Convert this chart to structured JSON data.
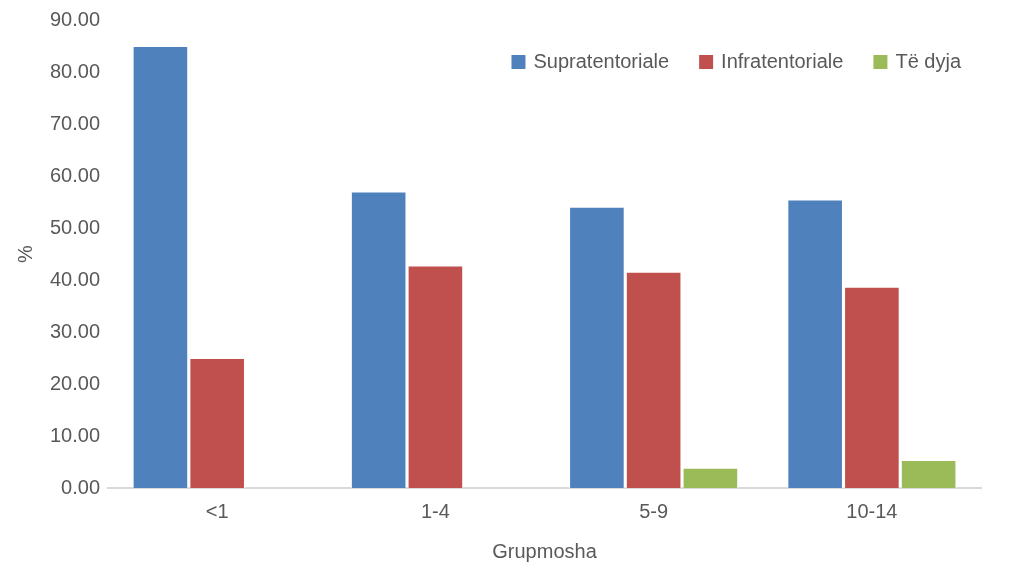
{
  "chart_data": {
    "type": "bar",
    "xlabel": "Grupmosha",
    "ylabel": "%",
    "categories": [
      "<1",
      "1-4",
      "5-9",
      "10-14"
    ],
    "series": [
      {
        "name": "Supratentoriale",
        "color": "#4f81bd",
        "values": [
          85.0,
          57.0,
          54.1,
          55.5
        ]
      },
      {
        "name": "Infratentoriale",
        "color": "#c0504d",
        "values": [
          25.0,
          42.8,
          41.6,
          38.7
        ]
      },
      {
        "name": "Të dyja",
        "color": "#9bbb59",
        "values": [
          null,
          null,
          3.9,
          5.4
        ]
      }
    ],
    "ylim": [
      0,
      90
    ],
    "yticks": [
      {
        "value": 0,
        "label": "0.00"
      },
      {
        "value": 10,
        "label": "10.00"
      },
      {
        "value": 20,
        "label": "20.00"
      },
      {
        "value": 30,
        "label": "30.00"
      },
      {
        "value": 40,
        "label": "40.00"
      },
      {
        "value": 50,
        "label": "50.00"
      },
      {
        "value": 60,
        "label": "60.00"
      },
      {
        "value": 70,
        "label": "70.00"
      },
      {
        "value": 80,
        "label": "80.00"
      },
      {
        "value": 90,
        "label": "90.00"
      }
    ],
    "grid": false,
    "legend": "top right"
  }
}
